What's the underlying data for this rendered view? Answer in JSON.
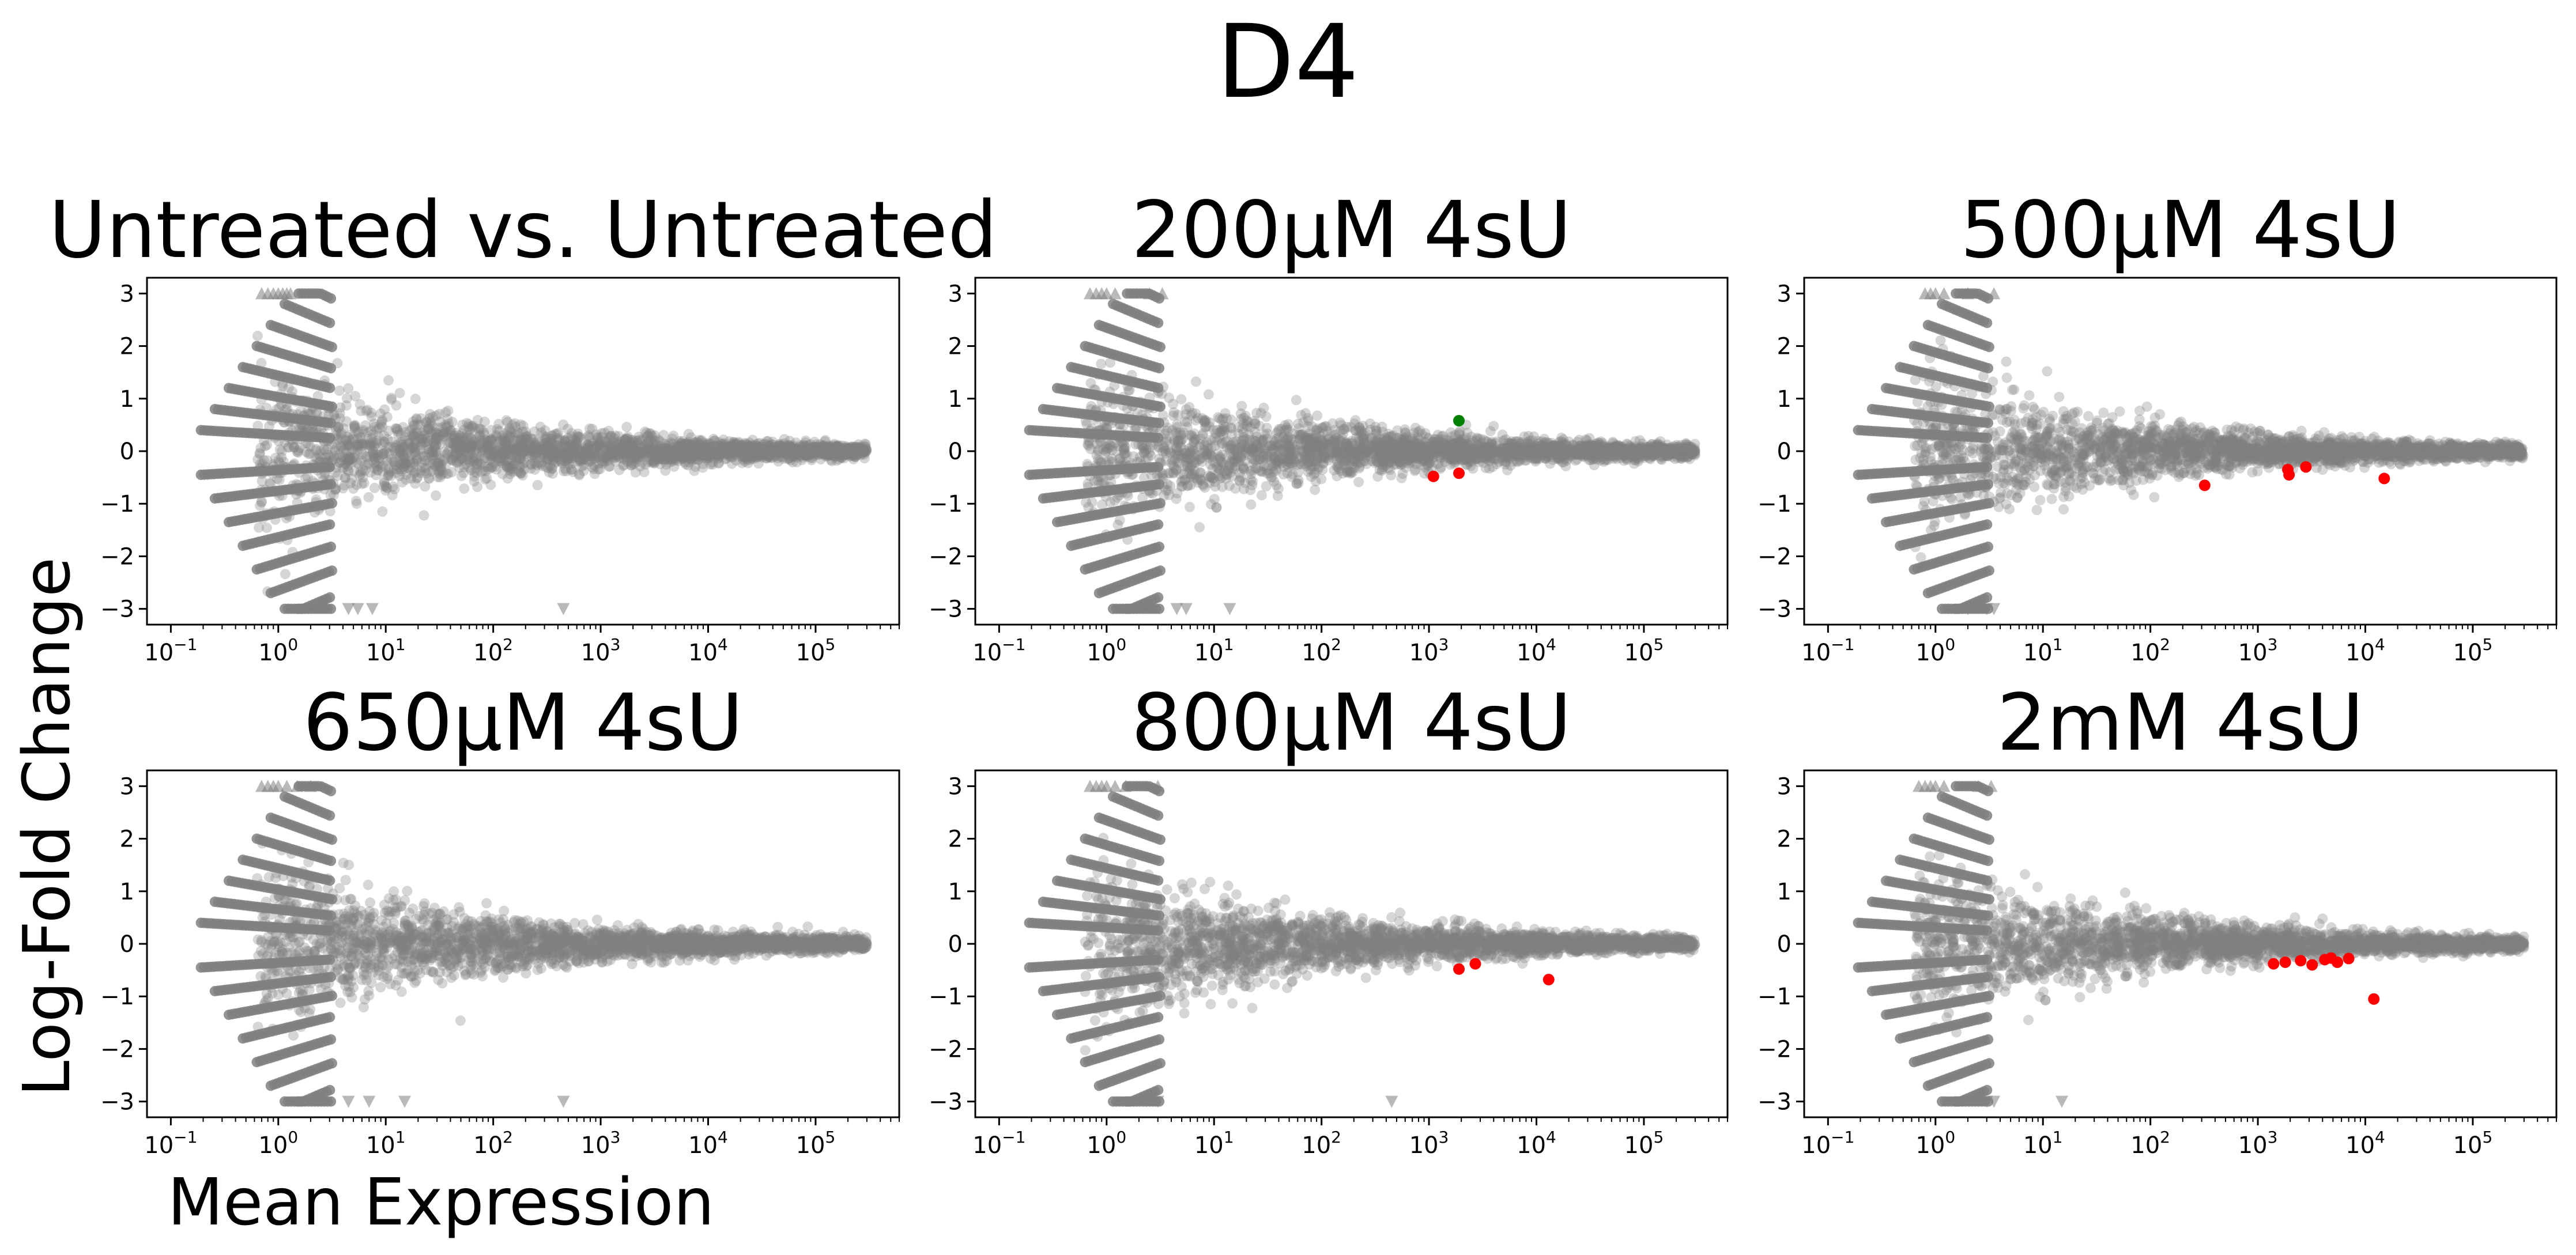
{
  "figure": {
    "title": "D4",
    "xlabel": "Mean Expression",
    "ylabel": "Log-Fold Change"
  },
  "colors": {
    "points": "#808080",
    "significant_down": "#ff0000",
    "significant_up": "#008000"
  },
  "chart_data": [
    {
      "type": "scatter",
      "title": "Untreated vs. Untreated",
      "xscale": "log",
      "xlim": [
        0.06,
        600000
      ],
      "ylim": [
        -3.3,
        3.3
      ],
      "xticks": [
        "10^-1",
        "10^0",
        "10^1",
        "10^2",
        "10^3",
        "10^4",
        "10^5"
      ],
      "yticks": [
        -3,
        -2,
        -1,
        0,
        1,
        2,
        3
      ],
      "grid": false,
      "background": {
        "max_spread": 2.2,
        "tail_x": 300000
      },
      "significant": [],
      "clipped_up": [
        0.7,
        0.8,
        0.9,
        1.0,
        1.1,
        1.2,
        1.3
      ],
      "clipped_down": [
        4.5,
        5.5,
        7.5,
        450
      ]
    },
    {
      "type": "scatter",
      "title": "200µM 4sU",
      "xscale": "log",
      "xlim": [
        0.06,
        600000
      ],
      "ylim": [
        -3.3,
        3.3
      ],
      "xticks": [
        "10^-1",
        "10^0",
        "10^1",
        "10^2",
        "10^3",
        "10^4",
        "10^5"
      ],
      "yticks": [
        -3,
        -2,
        -1,
        0,
        1,
        2,
        3
      ],
      "grid": false,
      "background": {
        "max_spread": 2.3,
        "tail_x": 300000
      },
      "significant": [
        {
          "x": 1900,
          "y": 0.58,
          "direction": "up"
        },
        {
          "x": 1100,
          "y": -0.48,
          "direction": "down"
        },
        {
          "x": 1900,
          "y": -0.42,
          "direction": "down"
        }
      ],
      "clipped_up": [
        0.7,
        0.8,
        0.9,
        1.0,
        1.2,
        2.5,
        3.3
      ],
      "clipped_down": [
        4.5,
        5.5,
        14
      ]
    },
    {
      "type": "scatter",
      "title": "500µM 4sU",
      "xscale": "log",
      "xlim": [
        0.06,
        600000
      ],
      "ylim": [
        -3.3,
        3.3
      ],
      "xticks": [
        "10^-1",
        "10^0",
        "10^1",
        "10^2",
        "10^3",
        "10^4",
        "10^5"
      ],
      "yticks": [
        -3,
        -2,
        -1,
        0,
        1,
        2,
        3
      ],
      "grid": false,
      "background": {
        "max_spread": 2.3,
        "tail_x": 300000
      },
      "significant": [
        {
          "x": 320,
          "y": -0.65,
          "direction": "down"
        },
        {
          "x": 1900,
          "y": -0.35,
          "direction": "down"
        },
        {
          "x": 1950,
          "y": -0.45,
          "direction": "down"
        },
        {
          "x": 2800,
          "y": -0.3,
          "direction": "down"
        },
        {
          "x": 15000,
          "y": -0.52,
          "direction": "down"
        }
      ],
      "clipped_up": [
        0.8,
        0.9,
        1.0,
        1.2,
        2.0,
        3.5
      ],
      "clipped_down": [
        2.0,
        3.0,
        3.5
      ]
    },
    {
      "type": "scatter",
      "title": "650µM 4sU",
      "xscale": "log",
      "xlim": [
        0.06,
        600000
      ],
      "ylim": [
        -3.3,
        3.3
      ],
      "xticks": [
        "10^-1",
        "10^0",
        "10^1",
        "10^2",
        "10^3",
        "10^4",
        "10^5"
      ],
      "yticks": [
        -3,
        -2,
        -1,
        0,
        1,
        2,
        3
      ],
      "grid": false,
      "background": {
        "max_spread": 2.4,
        "tail_x": 300000
      },
      "significant": [],
      "clipped_up": [
        0.7,
        0.8,
        0.9,
        1.0,
        1.2,
        1.5,
        2.0
      ],
      "clipped_down": [
        4.5,
        7.0,
        15,
        450
      ]
    },
    {
      "type": "scatter",
      "title": "800µM 4sU",
      "xscale": "log",
      "xlim": [
        0.06,
        600000
      ],
      "ylim": [
        -3.3,
        3.3
      ],
      "xticks": [
        "10^-1",
        "10^0",
        "10^1",
        "10^2",
        "10^3",
        "10^4",
        "10^5"
      ],
      "yticks": [
        -3,
        -2,
        -1,
        0,
        1,
        2,
        3
      ],
      "grid": false,
      "background": {
        "max_spread": 2.3,
        "tail_x": 300000
      },
      "significant": [
        {
          "x": 1900,
          "y": -0.48,
          "direction": "down"
        },
        {
          "x": 2700,
          "y": -0.38,
          "direction": "down"
        },
        {
          "x": 13000,
          "y": -0.68,
          "direction": "down"
        }
      ],
      "clipped_up": [
        0.7,
        0.8,
        0.9,
        1.0,
        1.2,
        1.5,
        3.0
      ],
      "clipped_down": [
        3.0,
        450
      ]
    },
    {
      "type": "scatter",
      "title": "2mM 4sU",
      "xscale": "log",
      "xlim": [
        0.06,
        600000
      ],
      "ylim": [
        -3.3,
        3.3
      ],
      "xticks": [
        "10^-1",
        "10^0",
        "10^1",
        "10^2",
        "10^3",
        "10^4",
        "10^5"
      ],
      "yticks": [
        -3,
        -2,
        -1,
        0,
        1,
        2,
        3
      ],
      "grid": false,
      "background": {
        "max_spread": 2.3,
        "tail_x": 300000
      },
      "significant": [
        {
          "x": 1400,
          "y": -0.38,
          "direction": "down"
        },
        {
          "x": 1800,
          "y": -0.35,
          "direction": "down"
        },
        {
          "x": 2500,
          "y": -0.32,
          "direction": "down"
        },
        {
          "x": 3200,
          "y": -0.4,
          "direction": "down"
        },
        {
          "x": 4200,
          "y": -0.3,
          "direction": "down"
        },
        {
          "x": 4800,
          "y": -0.27,
          "direction": "down"
        },
        {
          "x": 5500,
          "y": -0.35,
          "direction": "down"
        },
        {
          "x": 7000,
          "y": -0.28,
          "direction": "down"
        },
        {
          "x": 12000,
          "y": -1.05,
          "direction": "down"
        }
      ],
      "clipped_up": [
        0.7,
        0.8,
        0.9,
        1.0,
        1.2,
        2.5,
        3.3
      ],
      "clipped_down": [
        3.0,
        3.5,
        15
      ]
    }
  ]
}
